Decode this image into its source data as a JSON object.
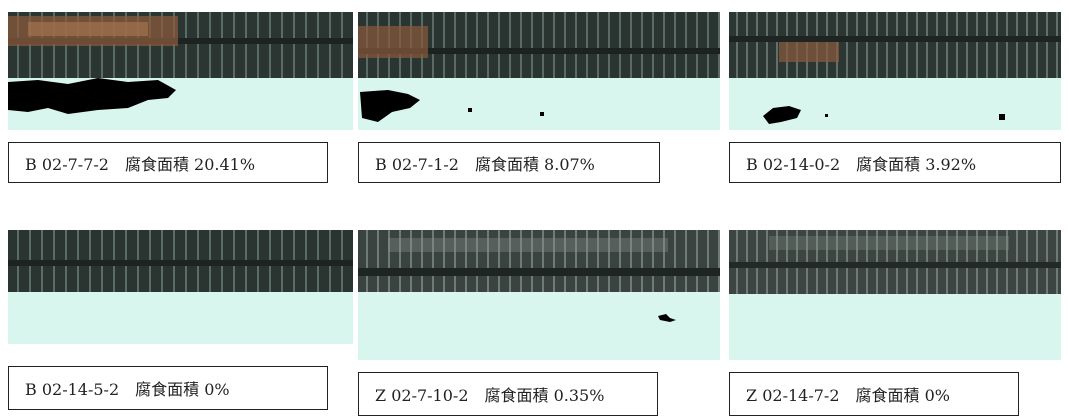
{
  "panels": [
    {
      "id": "B02-7-7-2",
      "label": "B 02-7-7-2　腐食面積 20.41%",
      "corrosion_percent": 20.41
    },
    {
      "id": "B02-7-1-2",
      "label": "B 02-7-1-2　腐食面積 8.07%",
      "corrosion_percent": 8.07
    },
    {
      "id": "B02-14-0-2",
      "label": "B 02-14-0-2　腐食面積 3.92%",
      "corrosion_percent": 3.92
    },
    {
      "id": "B02-14-5-2",
      "label": "B 02-14-5-2　腐食面積 0%",
      "corrosion_percent": 0
    },
    {
      "id": "Z02-7-10-2",
      "label": "Z 02-7-10-2　腐食面積 0.35%",
      "corrosion_percent": 0.35
    },
    {
      "id": "Z02-14-7-2",
      "label": "Z 02-14-7-2　腐食面積 0%",
      "corrosion_percent": 0
    }
  ],
  "colors": {
    "mask_background": "#d9f6ee",
    "corrosion_blob": "#000000",
    "steel_dark": "#2a3330",
    "rust": "#8a5a3c"
  }
}
